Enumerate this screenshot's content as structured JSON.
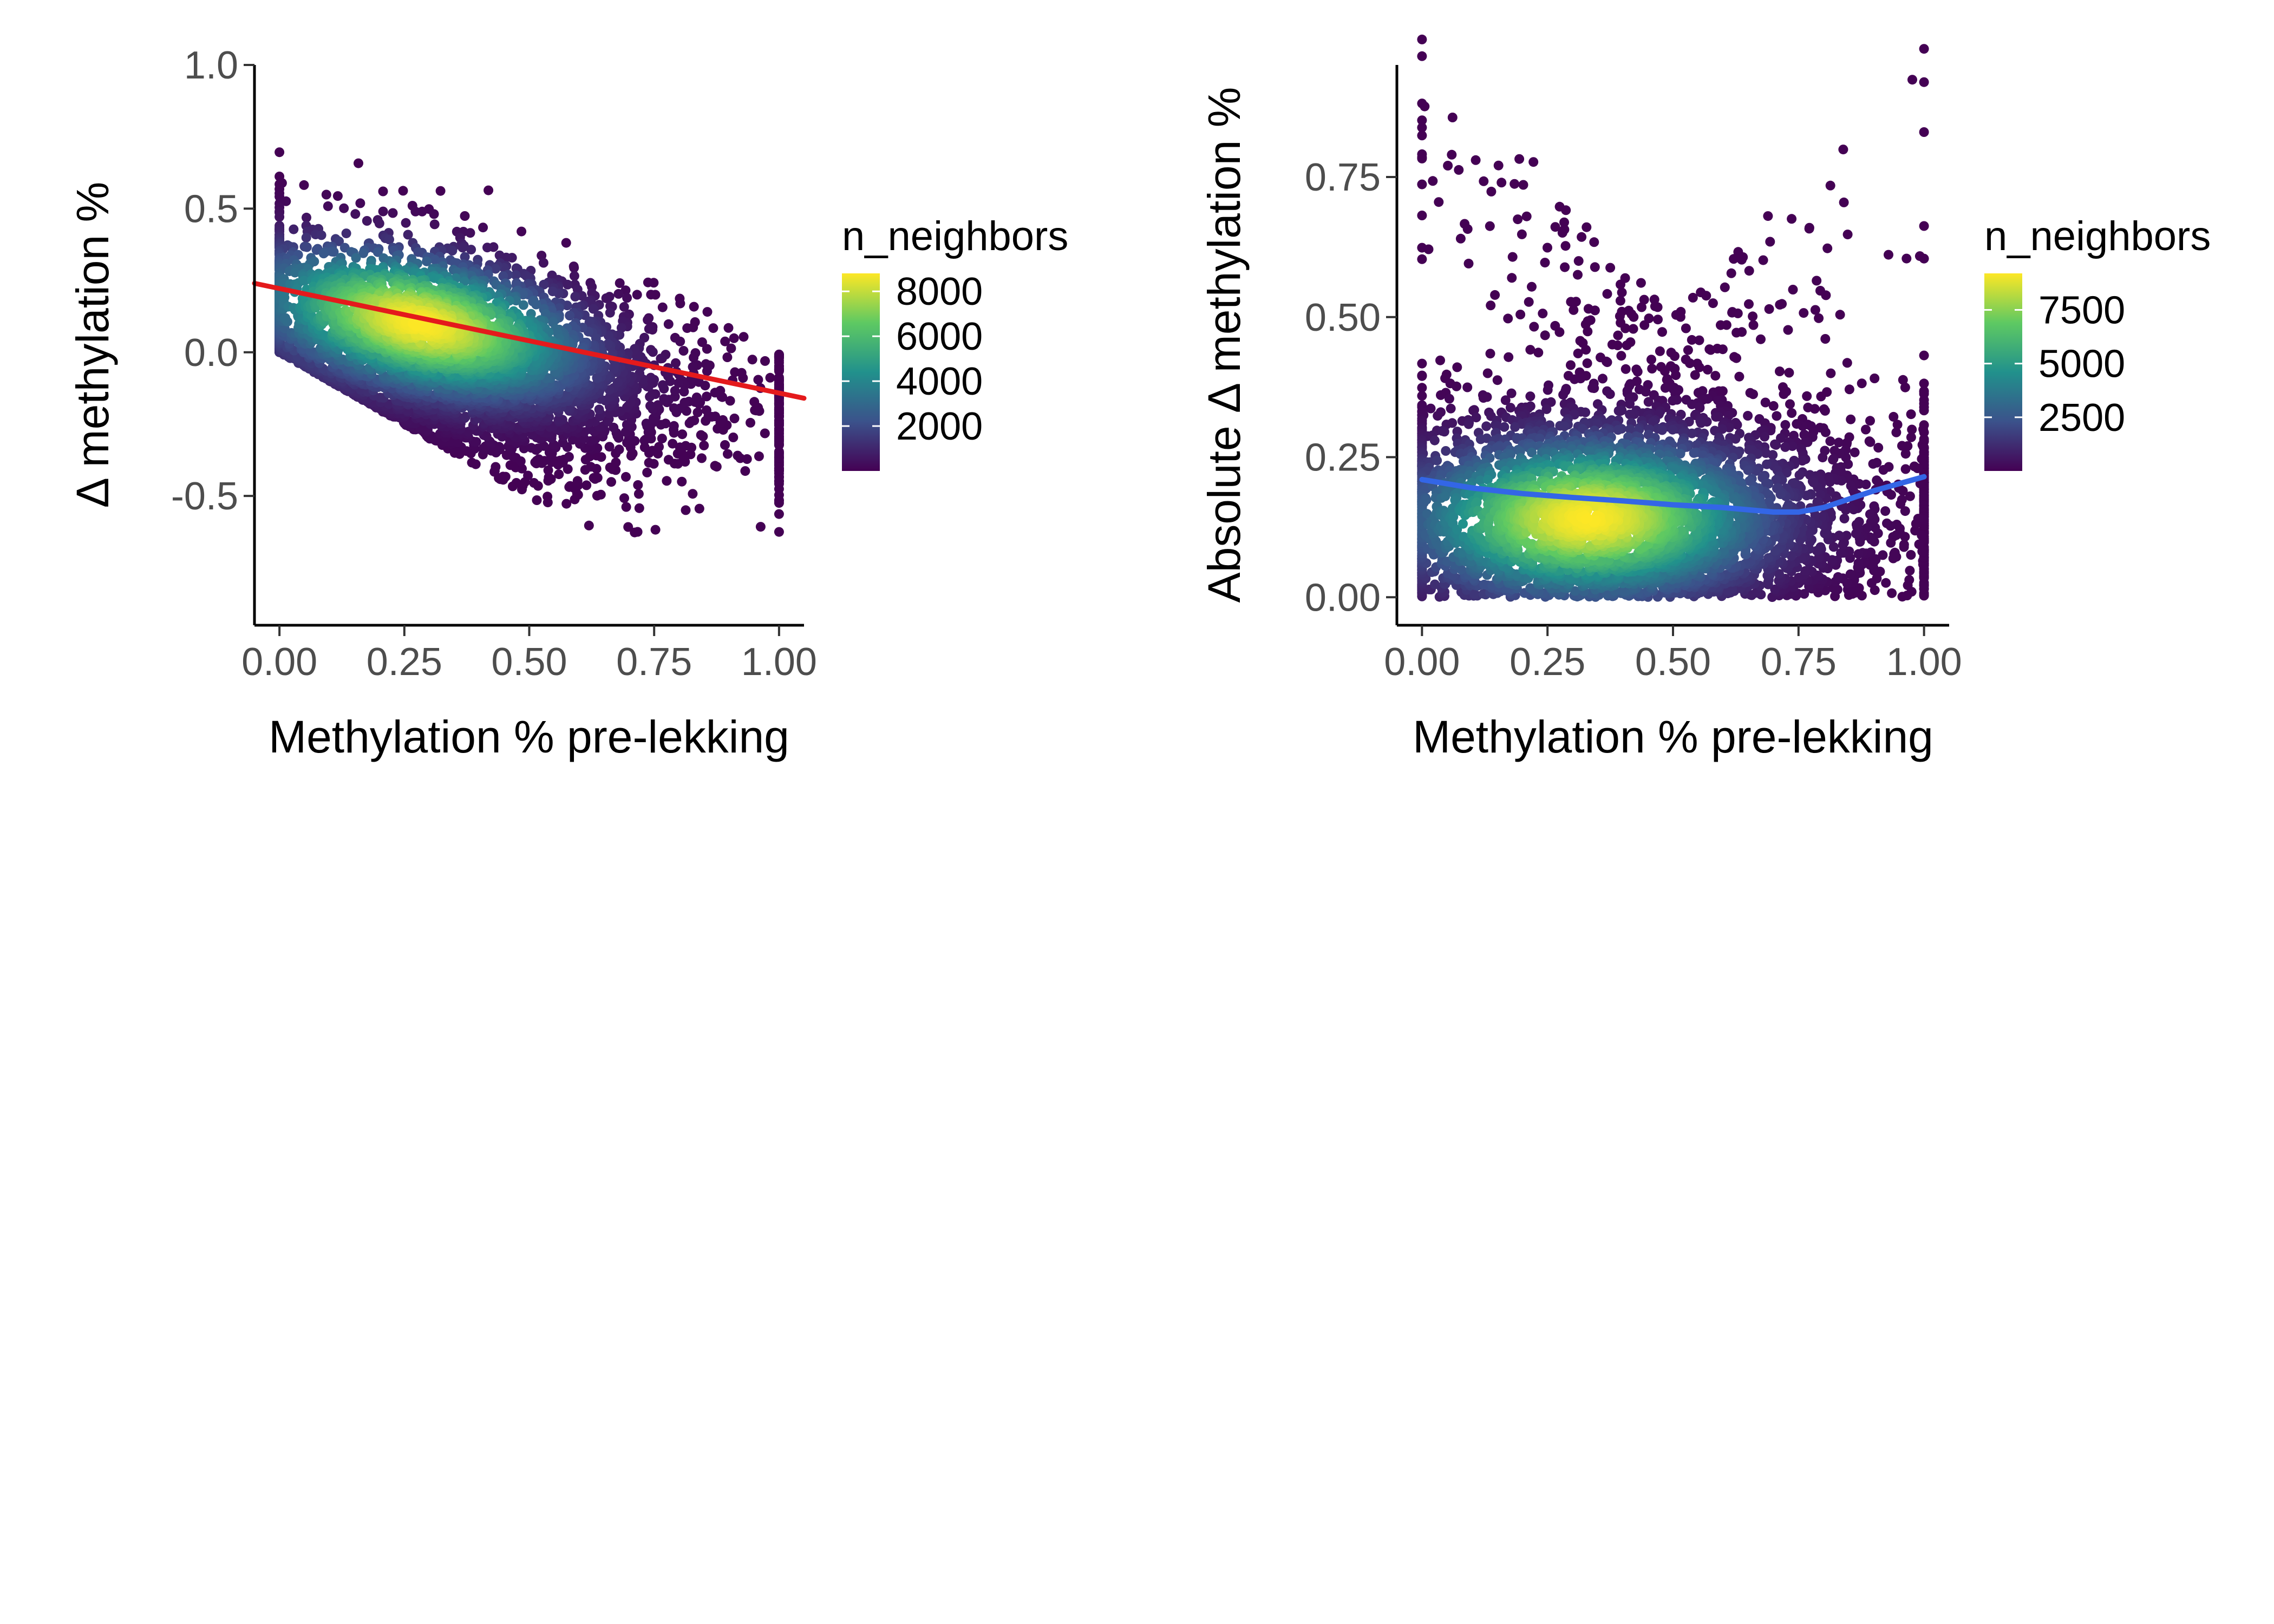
{
  "chart_data": [
    {
      "type": "scatter",
      "xlabel": "Methylation % pre-lekking",
      "ylabel": "Δ methylation %",
      "xlim": [
        -0.05,
        1.05
      ],
      "ylim": [
        -0.95,
        1.0
      ],
      "xticks": [
        0.0,
        0.25,
        0.5,
        0.75,
        1.0
      ],
      "xtick_labels": [
        "0.00",
        "0.25",
        "0.50",
        "0.75",
        "1.00"
      ],
      "yticks": [
        -0.5,
        0.0,
        0.5,
        1.0
      ],
      "ytick_labels": [
        "-0.5",
        "0.0",
        "0.5",
        "1.0"
      ],
      "grid": false,
      "density": {
        "center": [
          0.28,
          0.1
        ],
        "region": "band between Δ = −x (lower edge) and Δ = 1 − x (upper edge), dense core near x≈0.28",
        "max_neighbors": 8800
      },
      "trend_line": {
        "method": "linear",
        "color": "#e41a1c",
        "points": [
          [
            -0.05,
            0.24
          ],
          [
            1.05,
            -0.16
          ]
        ]
      },
      "legend": {
        "title": "n_neighbors",
        "position": "right",
        "range": [
          0,
          8800
        ],
        "ticks": [
          2000,
          4000,
          6000,
          8000
        ],
        "tick_labels": [
          "2000",
          "4000",
          "6000",
          "8000"
        ]
      },
      "colormap": [
        "#440154",
        "#3b528b",
        "#21918c",
        "#5ec962",
        "#fde725"
      ]
    },
    {
      "type": "scatter",
      "xlabel": "Methylation % pre-lekking",
      "ylabel": "Absolute Δ methylation %",
      "xlim": [
        -0.05,
        1.05
      ],
      "ylim": [
        -0.05,
        0.95
      ],
      "xticks": [
        0.0,
        0.25,
        0.5,
        0.75,
        1.0
      ],
      "xtick_labels": [
        "0.00",
        "0.25",
        "0.50",
        "0.75",
        "1.00"
      ],
      "yticks": [
        0.0,
        0.25,
        0.5,
        0.75
      ],
      "ytick_labels": [
        "0.00",
        "0.25",
        "0.50",
        "0.75"
      ],
      "grid": false,
      "density": {
        "center": [
          0.33,
          0.14
        ],
        "region": "0 ≤ |Δ| ≤ max(x, 1 − x), dense core near x≈0.33, |Δ|≈0.14",
        "max_neighbors": 9200
      },
      "trend_line": {
        "method": "loess",
        "color": "#3366e6",
        "points": [
          [
            0.0,
            0.21
          ],
          [
            0.1,
            0.195
          ],
          [
            0.2,
            0.185
          ],
          [
            0.3,
            0.178
          ],
          [
            0.4,
            0.172
          ],
          [
            0.5,
            0.165
          ],
          [
            0.6,
            0.16
          ],
          [
            0.7,
            0.152
          ],
          [
            0.75,
            0.152
          ],
          [
            0.8,
            0.16
          ],
          [
            0.85,
            0.175
          ],
          [
            0.9,
            0.19
          ],
          [
            1.0,
            0.215
          ]
        ]
      },
      "legend": {
        "title": "n_neighbors",
        "position": "right",
        "range": [
          0,
          9200
        ],
        "ticks": [
          2500,
          5000,
          7500
        ],
        "tick_labels": [
          "2500",
          "5000",
          "7500"
        ]
      },
      "colormap": [
        "#440154",
        "#3b528b",
        "#21918c",
        "#5ec962",
        "#fde725"
      ]
    }
  ]
}
